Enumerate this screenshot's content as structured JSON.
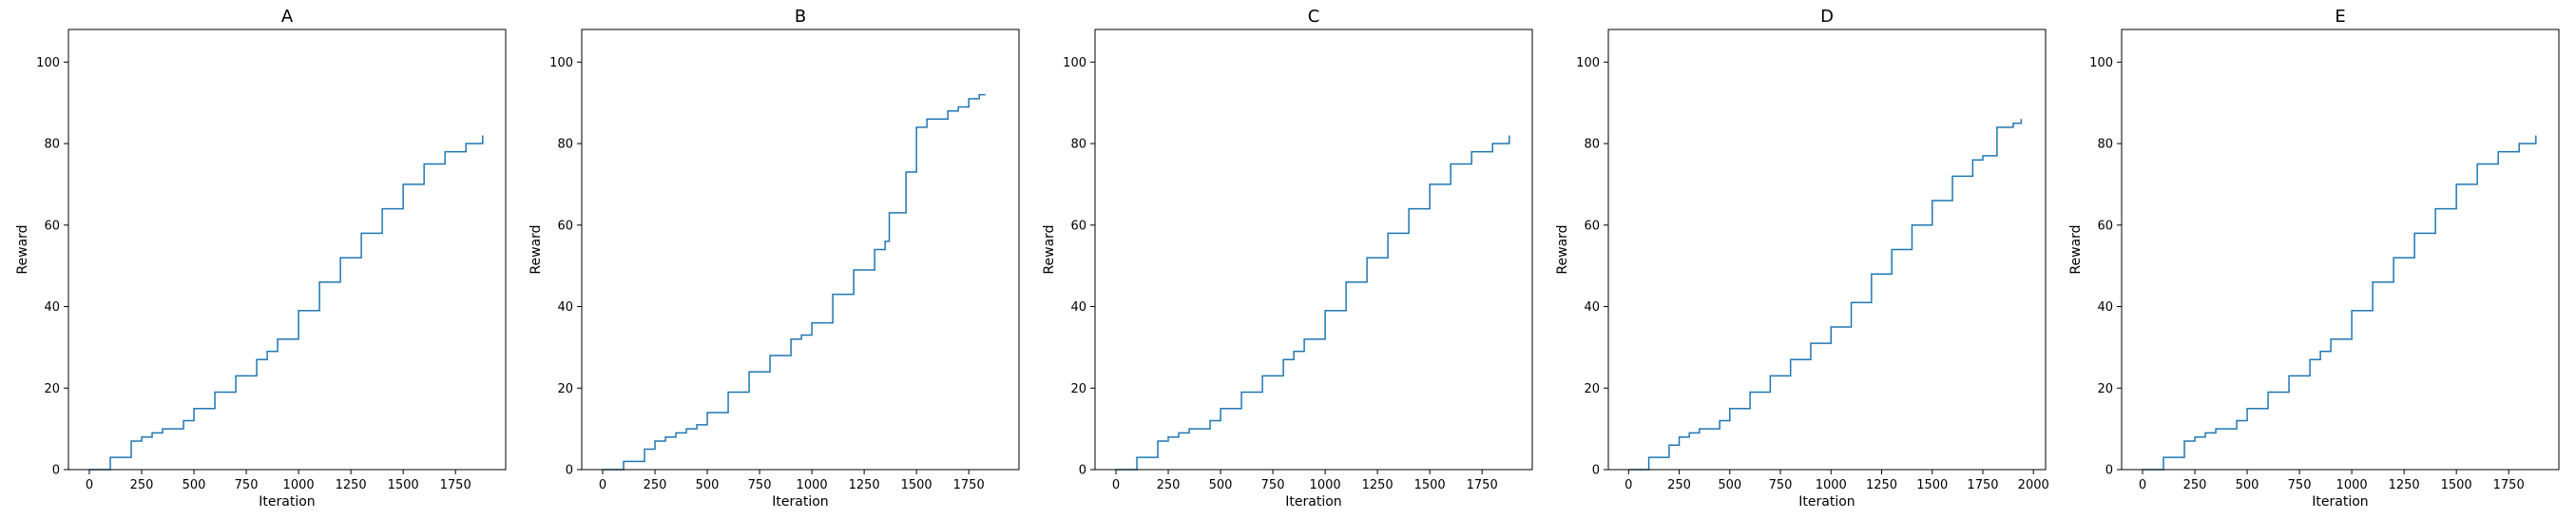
{
  "chart_data": [
    {
      "type": "line",
      "title": "A",
      "xlabel": "Iteration",
      "ylabel": "Reward",
      "xlim": [
        -100,
        1990
      ],
      "ylim": [
        0,
        108
      ],
      "xticks": [
        0,
        250,
        500,
        750,
        1000,
        1250,
        1500,
        1750
      ],
      "yticks": [
        0,
        20,
        40,
        60,
        80,
        100
      ],
      "grid": false,
      "series": [
        {
          "color": "#1f77b4",
          "x": [
            0,
            100,
            200,
            250,
            300,
            350,
            400,
            450,
            500,
            600,
            700,
            800,
            850,
            900,
            1000,
            1100,
            1200,
            1300,
            1400,
            1500,
            1600,
            1650,
            1700,
            1750,
            1800,
            1850,
            1880
          ],
          "y": [
            0,
            3,
            7,
            8,
            9,
            10,
            10,
            12,
            15,
            19,
            23,
            27,
            29,
            32,
            39,
            46,
            52,
            58,
            64,
            70,
            75,
            75,
            78,
            78,
            80,
            80,
            82
          ]
        }
      ]
    },
    {
      "type": "line",
      "title": "B",
      "xlabel": "Iteration",
      "ylabel": "Reward",
      "xlim": [
        -100,
        1990
      ],
      "ylim": [
        0,
        108
      ],
      "xticks": [
        0,
        250,
        500,
        750,
        1000,
        1250,
        1500,
        1750
      ],
      "yticks": [
        0,
        20,
        40,
        60,
        80,
        100
      ],
      "grid": false,
      "series": [
        {
          "color": "#1f77b4",
          "x": [
            0,
            100,
            200,
            250,
            300,
            350,
            400,
            450,
            500,
            600,
            700,
            800,
            900,
            950,
            1000,
            1100,
            1200,
            1300,
            1350,
            1370,
            1400,
            1450,
            1500,
            1550,
            1600,
            1650,
            1700,
            1750,
            1800,
            1830
          ],
          "y": [
            0,
            2,
            5,
            7,
            8,
            9,
            10,
            11,
            14,
            19,
            24,
            28,
            32,
            33,
            36,
            43,
            49,
            54,
            56,
            63,
            63,
            73,
            84,
            86,
            86,
            88,
            89,
            91,
            92,
            92
          ]
        }
      ]
    },
    {
      "type": "line",
      "title": "C",
      "xlabel": "Iteration",
      "ylabel": "Reward",
      "xlim": [
        -100,
        1990
      ],
      "ylim": [
        0,
        108
      ],
      "xticks": [
        0,
        250,
        500,
        750,
        1000,
        1250,
        1500,
        1750
      ],
      "yticks": [
        0,
        20,
        40,
        60,
        80,
        100
      ],
      "grid": false,
      "series": [
        {
          "color": "#1f77b4",
          "x": [
            0,
            100,
            200,
            250,
            300,
            350,
            400,
            450,
            500,
            600,
            700,
            800,
            850,
            900,
            1000,
            1100,
            1200,
            1300,
            1400,
            1500,
            1600,
            1650,
            1700,
            1750,
            1800,
            1850,
            1880
          ],
          "y": [
            0,
            3,
            7,
            8,
            9,
            10,
            10,
            12,
            15,
            19,
            23,
            27,
            29,
            32,
            39,
            46,
            52,
            58,
            64,
            70,
            75,
            75,
            78,
            78,
            80,
            80,
            82
          ]
        }
      ]
    },
    {
      "type": "line",
      "title": "D",
      "xlabel": "Iteration",
      "ylabel": "Reward",
      "xlim": [
        -100,
        2060
      ],
      "ylim": [
        0,
        108
      ],
      "xticks": [
        0,
        250,
        500,
        750,
        1000,
        1250,
        1500,
        1750,
        2000
      ],
      "yticks": [
        0,
        20,
        40,
        60,
        80,
        100
      ],
      "grid": false,
      "series": [
        {
          "color": "#1f77b4",
          "x": [
            0,
            100,
            200,
            250,
            300,
            350,
            400,
            450,
            500,
            600,
            700,
            800,
            900,
            1000,
            1100,
            1200,
            1300,
            1400,
            1500,
            1600,
            1700,
            1750,
            1800,
            1820,
            1850,
            1900,
            1940
          ],
          "y": [
            0,
            3,
            6,
            8,
            9,
            10,
            10,
            12,
            15,
            19,
            23,
            27,
            31,
            35,
            41,
            48,
            54,
            60,
            66,
            72,
            76,
            77,
            77,
            84,
            84,
            85,
            86
          ]
        }
      ]
    },
    {
      "type": "line",
      "title": "E",
      "xlabel": "Iteration",
      "ylabel": "Reward",
      "xlim": [
        -100,
        1990
      ],
      "ylim": [
        0,
        108
      ],
      "xticks": [
        0,
        250,
        500,
        750,
        1000,
        1250,
        1500,
        1750
      ],
      "yticks": [
        0,
        20,
        40,
        60,
        80,
        100
      ],
      "grid": false,
      "series": [
        {
          "color": "#1f77b4",
          "x": [
            0,
            100,
            200,
            250,
            300,
            350,
            400,
            450,
            500,
            600,
            700,
            800,
            850,
            900,
            1000,
            1100,
            1200,
            1300,
            1400,
            1500,
            1600,
            1650,
            1700,
            1750,
            1800,
            1850,
            1880
          ],
          "y": [
            0,
            3,
            7,
            8,
            9,
            10,
            10,
            12,
            15,
            19,
            23,
            27,
            29,
            32,
            39,
            46,
            52,
            58,
            64,
            70,
            75,
            75,
            78,
            78,
            80,
            80,
            82
          ]
        }
      ]
    }
  ]
}
